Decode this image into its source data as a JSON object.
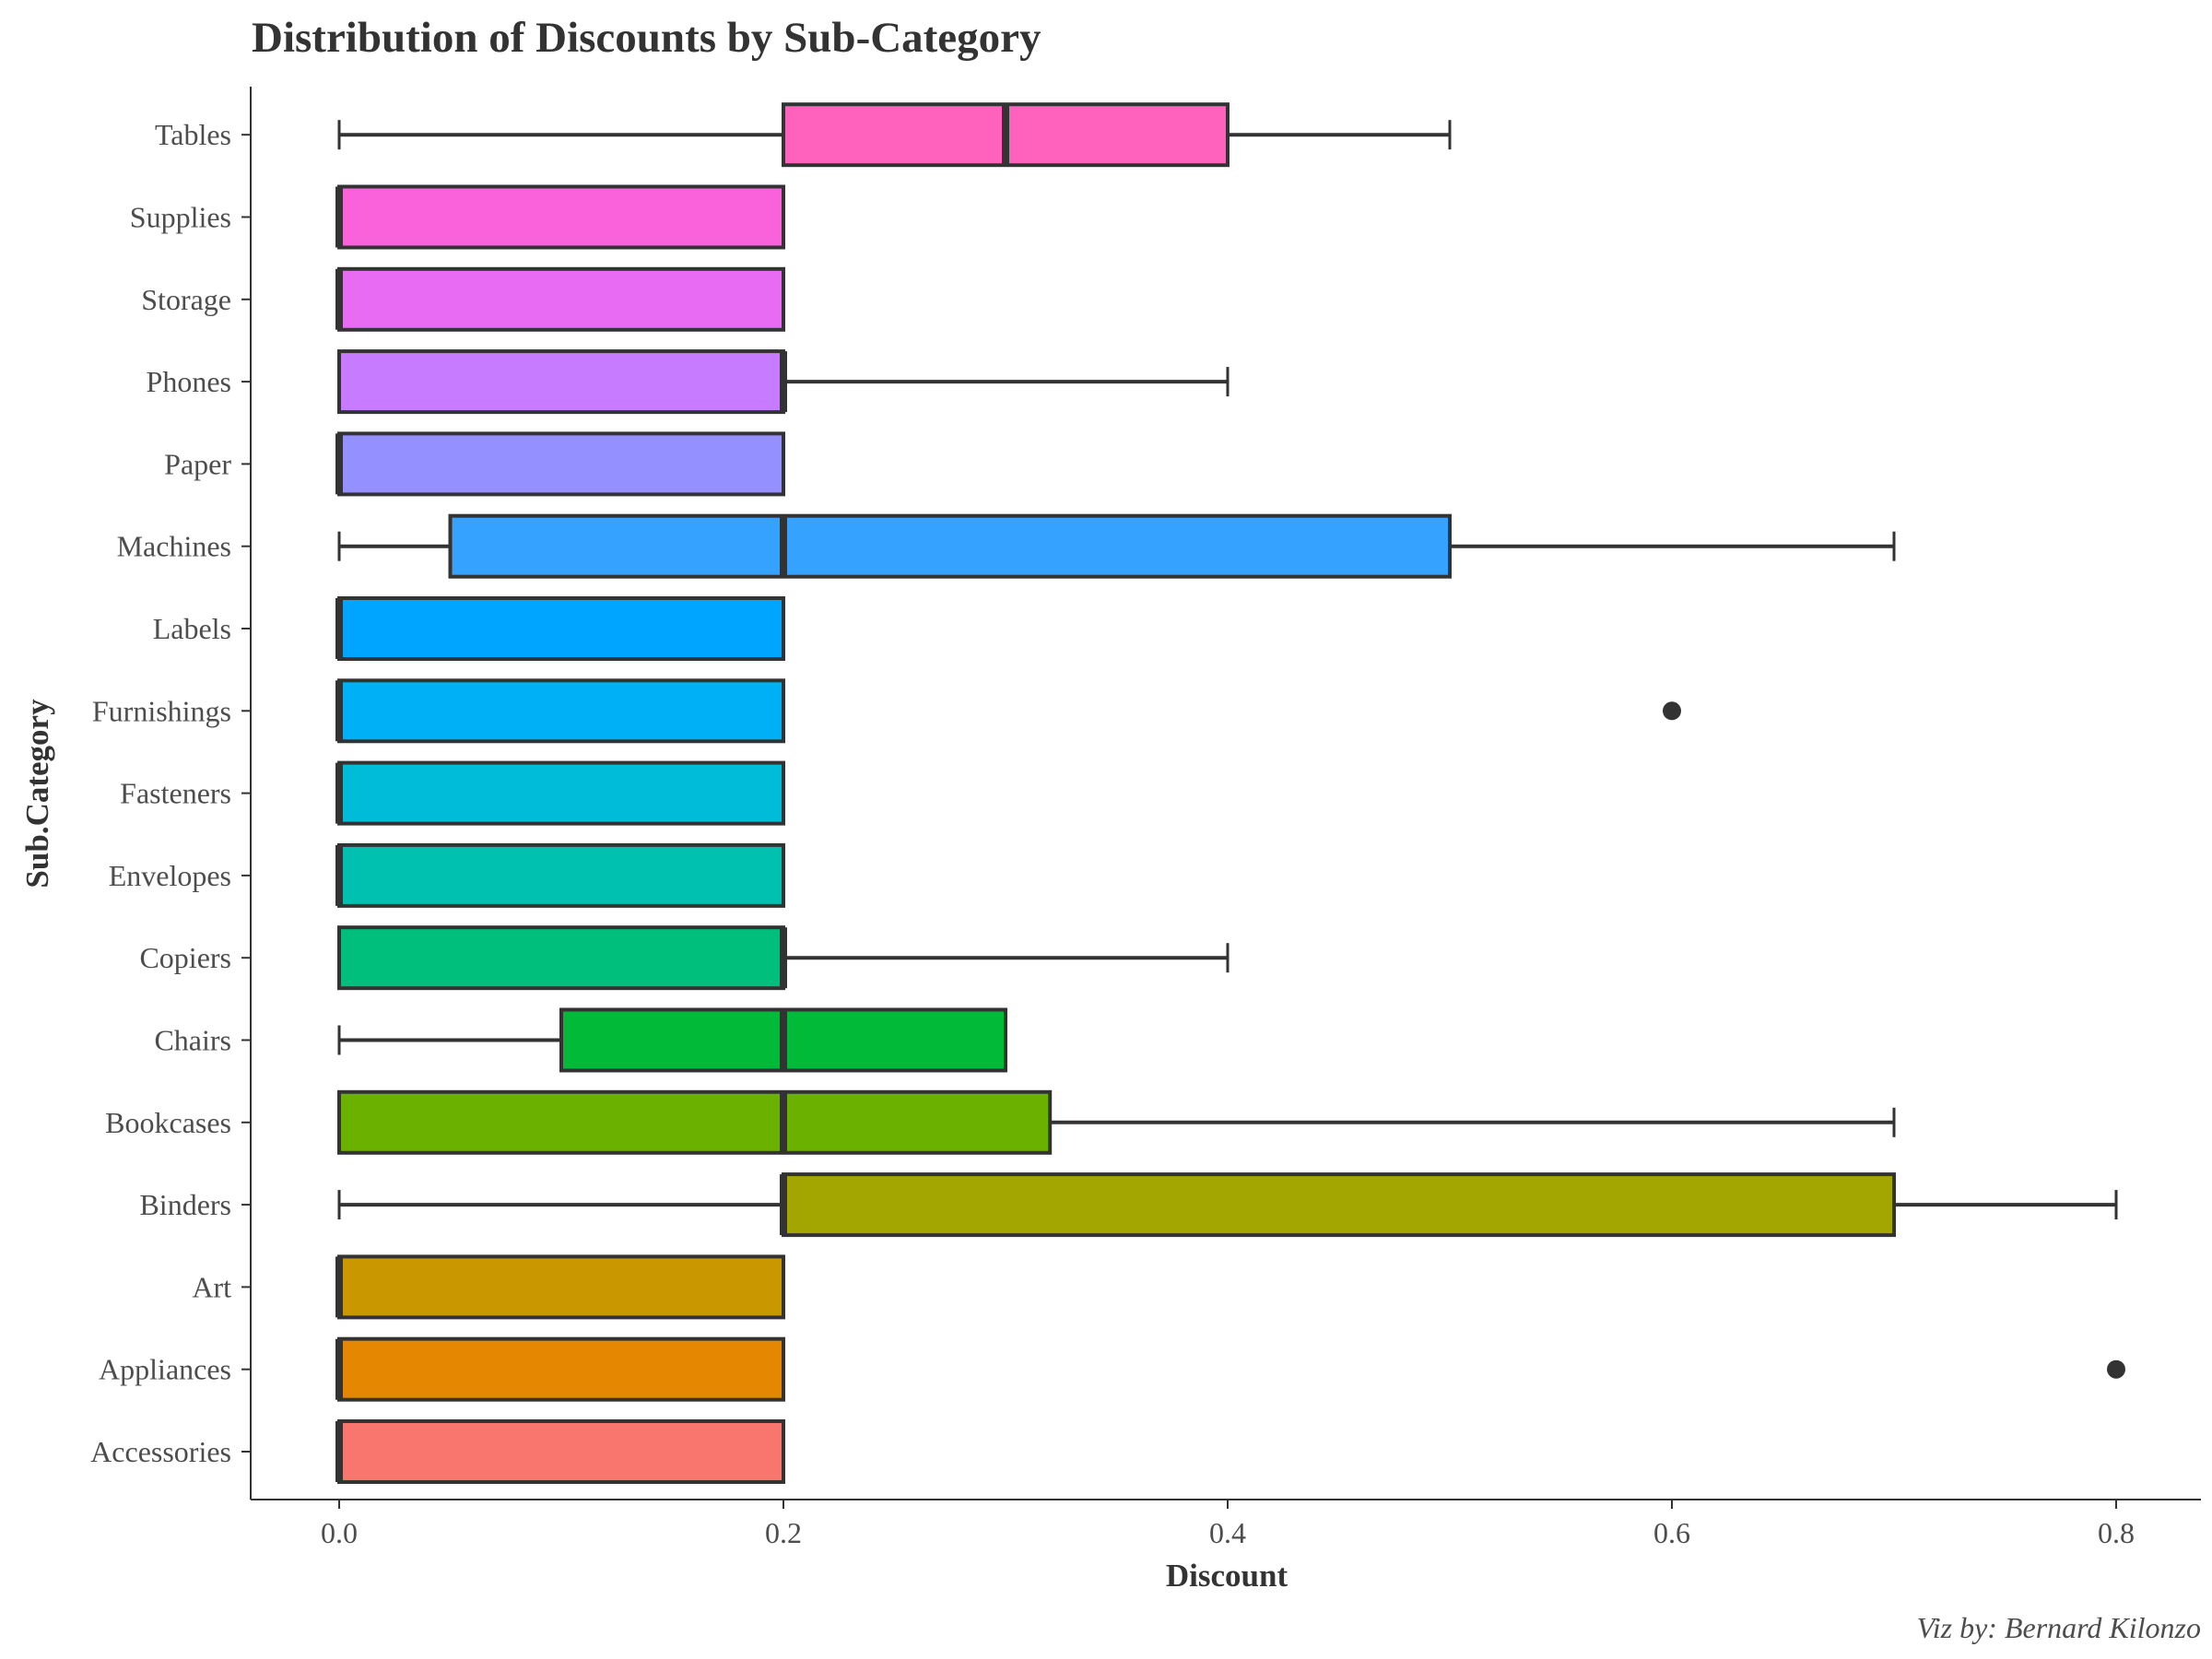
{
  "chart_data": {
    "type": "boxplot",
    "orientation": "horizontal",
    "title": "Distribution of Discounts by Sub-Category",
    "xlabel": "Discount",
    "ylabel": "Sub.Category",
    "caption": "Viz by: Bernard Kilonzo",
    "xlim": [
      -0.04,
      0.84
    ],
    "xticks": [
      0.0,
      0.2,
      0.4,
      0.6,
      0.8
    ],
    "xtick_labels": [
      "0.0",
      "0.2",
      "0.4",
      "0.6",
      "0.8"
    ],
    "grid": false,
    "legend": "none",
    "categories": [
      "Accessories",
      "Appliances",
      "Art",
      "Binders",
      "Bookcases",
      "Chairs",
      "Copiers",
      "Envelopes",
      "Fasteners",
      "Furnishings",
      "Labels",
      "Machines",
      "Paper",
      "Phones",
      "Storage",
      "Supplies",
      "Tables"
    ],
    "boxes": [
      {
        "category": "Accessories",
        "whisker_low": 0.0,
        "q1": 0.0,
        "median": 0.0,
        "q3": 0.2,
        "whisker_high": 0.2,
        "outliers": [],
        "color": "#F8766D"
      },
      {
        "category": "Appliances",
        "whisker_low": 0.0,
        "q1": 0.0,
        "median": 0.0,
        "q3": 0.2,
        "whisker_high": 0.2,
        "outliers": [
          0.8
        ],
        "color": "#E58700"
      },
      {
        "category": "Art",
        "whisker_low": 0.0,
        "q1": 0.0,
        "median": 0.0,
        "q3": 0.2,
        "whisker_high": 0.2,
        "outliers": [],
        "color": "#C99800"
      },
      {
        "category": "Binders",
        "whisker_low": 0.0,
        "q1": 0.2,
        "median": 0.2,
        "q3": 0.7,
        "whisker_high": 0.8,
        "outliers": [],
        "color": "#A3A500"
      },
      {
        "category": "Bookcases",
        "whisker_low": 0.0,
        "q1": 0.0,
        "median": 0.2,
        "q3": 0.32,
        "whisker_high": 0.7,
        "outliers": [],
        "color": "#6BB100"
      },
      {
        "category": "Chairs",
        "whisker_low": 0.0,
        "q1": 0.1,
        "median": 0.2,
        "q3": 0.3,
        "whisker_high": 0.3,
        "outliers": [],
        "color": "#00BA38"
      },
      {
        "category": "Copiers",
        "whisker_low": 0.0,
        "q1": 0.0,
        "median": 0.2,
        "q3": 0.2,
        "whisker_high": 0.4,
        "outliers": [],
        "color": "#00BF7D"
      },
      {
        "category": "Envelopes",
        "whisker_low": 0.0,
        "q1": 0.0,
        "median": 0.0,
        "q3": 0.2,
        "whisker_high": 0.2,
        "outliers": [],
        "color": "#00C0AF"
      },
      {
        "category": "Fasteners",
        "whisker_low": 0.0,
        "q1": 0.0,
        "median": 0.0,
        "q3": 0.2,
        "whisker_high": 0.2,
        "outliers": [],
        "color": "#00BCD8"
      },
      {
        "category": "Furnishings",
        "whisker_low": 0.0,
        "q1": 0.0,
        "median": 0.0,
        "q3": 0.2,
        "whisker_high": 0.2,
        "outliers": [
          0.6
        ],
        "color": "#00B0F6"
      },
      {
        "category": "Labels",
        "whisker_low": 0.0,
        "q1": 0.0,
        "median": 0.0,
        "q3": 0.2,
        "whisker_high": 0.2,
        "outliers": [],
        "color": "#00A5FF"
      },
      {
        "category": "Machines",
        "whisker_low": 0.0,
        "q1": 0.05,
        "median": 0.2,
        "q3": 0.5,
        "whisker_high": 0.7,
        "outliers": [],
        "color": "#35A2FF"
      },
      {
        "category": "Paper",
        "whisker_low": 0.0,
        "q1": 0.0,
        "median": 0.0,
        "q3": 0.2,
        "whisker_high": 0.2,
        "outliers": [],
        "color": "#9590FF"
      },
      {
        "category": "Phones",
        "whisker_low": 0.0,
        "q1": 0.0,
        "median": 0.2,
        "q3": 0.2,
        "whisker_high": 0.4,
        "outliers": [],
        "color": "#C77CFF"
      },
      {
        "category": "Storage",
        "whisker_low": 0.0,
        "q1": 0.0,
        "median": 0.0,
        "q3": 0.2,
        "whisker_high": 0.2,
        "outliers": [],
        "color": "#E76BF3"
      },
      {
        "category": "Supplies",
        "whisker_low": 0.0,
        "q1": 0.0,
        "median": 0.0,
        "q3": 0.2,
        "whisker_high": 0.2,
        "outliers": [],
        "color": "#FA62DB"
      },
      {
        "category": "Tables",
        "whisker_low": 0.0,
        "q1": 0.2,
        "median": 0.3,
        "q3": 0.4,
        "whisker_high": 0.5,
        "outliers": [],
        "color": "#FF62BC"
      }
    ]
  }
}
